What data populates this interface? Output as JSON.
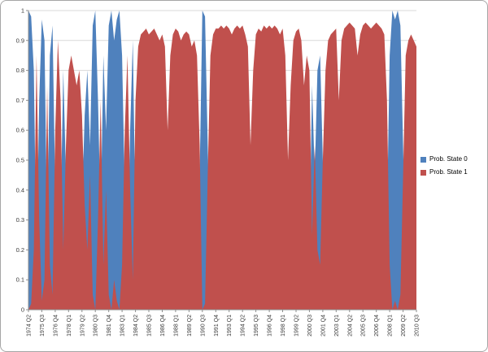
{
  "figure": {
    "background": "#ffffff",
    "border_color": "#a6a6a6"
  },
  "chart_data": {
    "type": "area",
    "title": "",
    "xlabel": "",
    "ylabel": "",
    "ylim": [
      0,
      1
    ],
    "grid": "horizontal",
    "legend_position": "right",
    "axis_color": "#8c8c8c",
    "gridline_color": "#d8d8d8",
    "tick_label_color": "#3a3a3a",
    "x_frequency": "quarterly",
    "x_start": "1974 Q2",
    "x_end": "2010 Q3",
    "x_tick_every": 5,
    "x_tick_labels": [
      "1974 Q2",
      "1975 Q3",
      "1976 Q4",
      "1978 Q1",
      "1979 Q2",
      "1980 Q3",
      "1981 Q4",
      "1983 Q1",
      "1984 Q2",
      "1985 Q3",
      "1986 Q4",
      "1988 Q1",
      "1989 Q2",
      "1990 Q3",
      "1991 Q4",
      "1993 Q1",
      "1994 Q2",
      "1995 Q3",
      "1996 Q4",
      "1998 Q1",
      "1999 Q2",
      "2000 Q3",
      "2001 Q4",
      "2003 Q1",
      "2004 Q2",
      "2005 Q3",
      "2006 Q4",
      "2008 Q1",
      "2009 Q2",
      "2010 Q3"
    ],
    "y_ticks": [
      "0",
      "0.1",
      "0.2",
      "0.3",
      "0.4",
      "0.5",
      "0.6",
      "0.7",
      "0.8",
      "0.9",
      "1"
    ],
    "series": [
      {
        "name": "Prob. State 0",
        "color": "#4f81bd",
        "values": [
          1.0,
          0.98,
          0.8,
          0.15,
          0.7,
          0.97,
          0.9,
          0.25,
          0.85,
          0.95,
          0.4,
          0.1,
          0.3,
          0.8,
          0.45,
          0.2,
          0.15,
          0.2,
          0.25,
          0.2,
          0.35,
          0.65,
          0.8,
          0.55,
          0.95,
          1.0,
          0.7,
          0.3,
          0.85,
          0.6,
          0.95,
          1.0,
          0.9,
          0.97,
          1.0,
          0.85,
          0.4,
          0.15,
          0.6,
          0.9,
          0.3,
          0.12,
          0.08,
          0.07,
          0.06,
          0.08,
          0.07,
          0.06,
          0.08,
          0.1,
          0.08,
          0.12,
          0.4,
          0.15,
          0.08,
          0.06,
          0.07,
          0.1,
          0.08,
          0.07,
          0.08,
          0.12,
          0.1,
          0.15,
          0.45,
          1.0,
          0.98,
          0.55,
          0.15,
          0.08,
          0.06,
          0.06,
          0.05,
          0.06,
          0.05,
          0.06,
          0.08,
          0.06,
          0.05,
          0.06,
          0.05,
          0.08,
          0.12,
          0.45,
          0.2,
          0.08,
          0.06,
          0.07,
          0.05,
          0.06,
          0.05,
          0.06,
          0.05,
          0.06,
          0.08,
          0.06,
          0.15,
          0.5,
          0.25,
          0.1,
          0.07,
          0.06,
          0.1,
          0.25,
          0.15,
          0.2,
          0.75,
          0.45,
          0.8,
          0.85,
          0.5,
          0.2,
          0.1,
          0.08,
          0.07,
          0.06,
          0.3,
          0.1,
          0.06,
          0.05,
          0.04,
          0.05,
          0.06,
          0.15,
          0.08,
          0.05,
          0.04,
          0.05,
          0.06,
          0.05,
          0.04,
          0.05,
          0.06,
          0.08,
          0.3,
          0.85,
          1.0,
          0.97,
          1.0,
          0.95,
          0.55,
          0.15,
          0.1,
          0.08,
          0.1,
          0.12
        ]
      },
      {
        "name": "Prob. State 1",
        "color": "#c0504d",
        "derived": "complement_of_series_0 (value = 1 - Prob. State 0)"
      }
    ]
  }
}
